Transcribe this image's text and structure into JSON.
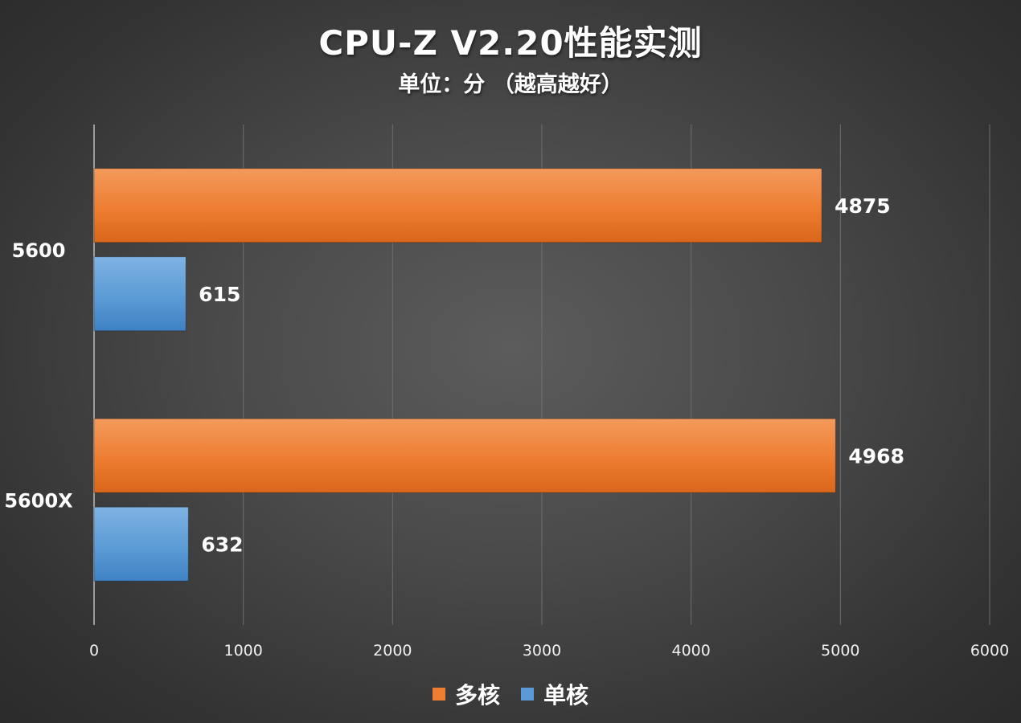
{
  "title": "CPU-Z V2.20性能实测",
  "subtitle": "单位：分 （越高越好）",
  "chart_data": {
    "type": "bar",
    "orientation": "horizontal",
    "categories": [
      "5600",
      "5600X"
    ],
    "series": [
      {
        "name": "多核",
        "values": [
          4875,
          4968
        ],
        "color": "#ED7D31"
      },
      {
        "name": "单核",
        "values": [
          615,
          632
        ],
        "color": "#5B9BD5"
      }
    ],
    "x_ticks": [
      "0",
      "1000",
      "2000",
      "3000",
      "4000",
      "5000",
      "6000"
    ],
    "xlim": [
      0,
      6000
    ],
    "grid": true,
    "legend_position": "bottom"
  }
}
